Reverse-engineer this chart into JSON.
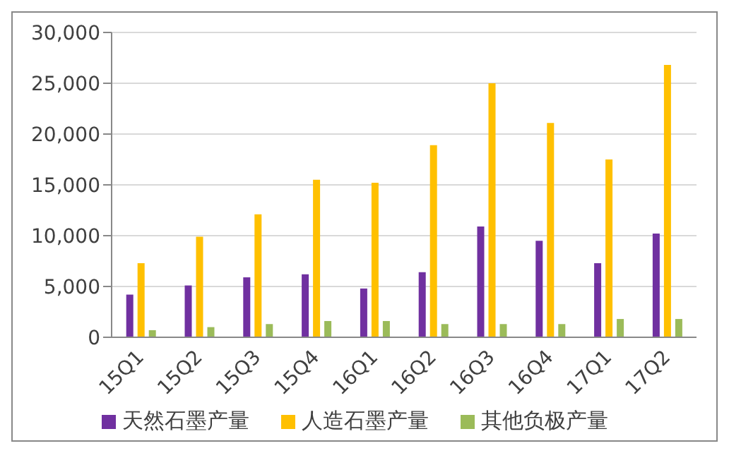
{
  "chart_data": {
    "type": "bar",
    "categories": [
      "15Q1",
      "15Q2",
      "15Q3",
      "15Q4",
      "16Q1",
      "16Q2",
      "16Q3",
      "16Q4",
      "17Q1",
      "17Q2"
    ],
    "series": [
      {
        "name": "天然石墨产量",
        "color": "#7030a0",
        "values": [
          4200,
          5100,
          5900,
          6200,
          4800,
          6400,
          10900,
          9500,
          7300,
          10200
        ]
      },
      {
        "name": "人造石墨产量",
        "color": "#ffc000",
        "values": [
          7300,
          9900,
          12100,
          15500,
          15200,
          18900,
          25000,
          21100,
          17500,
          26800
        ]
      },
      {
        "name": "其他负极产量",
        "color": "#9bbb59",
        "values": [
          700,
          1000,
          1300,
          1600,
          1600,
          1300,
          1300,
          1300,
          1800,
          1800
        ]
      }
    ],
    "ylim": [
      0,
      30000
    ],
    "yticks": [
      0,
      {
        "value": 5000,
        "label": "5,000"
      },
      {
        "value": 10000,
        "label": "10,000"
      },
      {
        "value": 15000,
        "label": "15,000"
      },
      {
        "value": 20000,
        "label": "20,000"
      },
      {
        "value": 25000,
        "label": "25,000"
      },
      {
        "value": 30000,
        "label": "30,000"
      }
    ],
    "grid": "y",
    "legend": "bottom"
  }
}
